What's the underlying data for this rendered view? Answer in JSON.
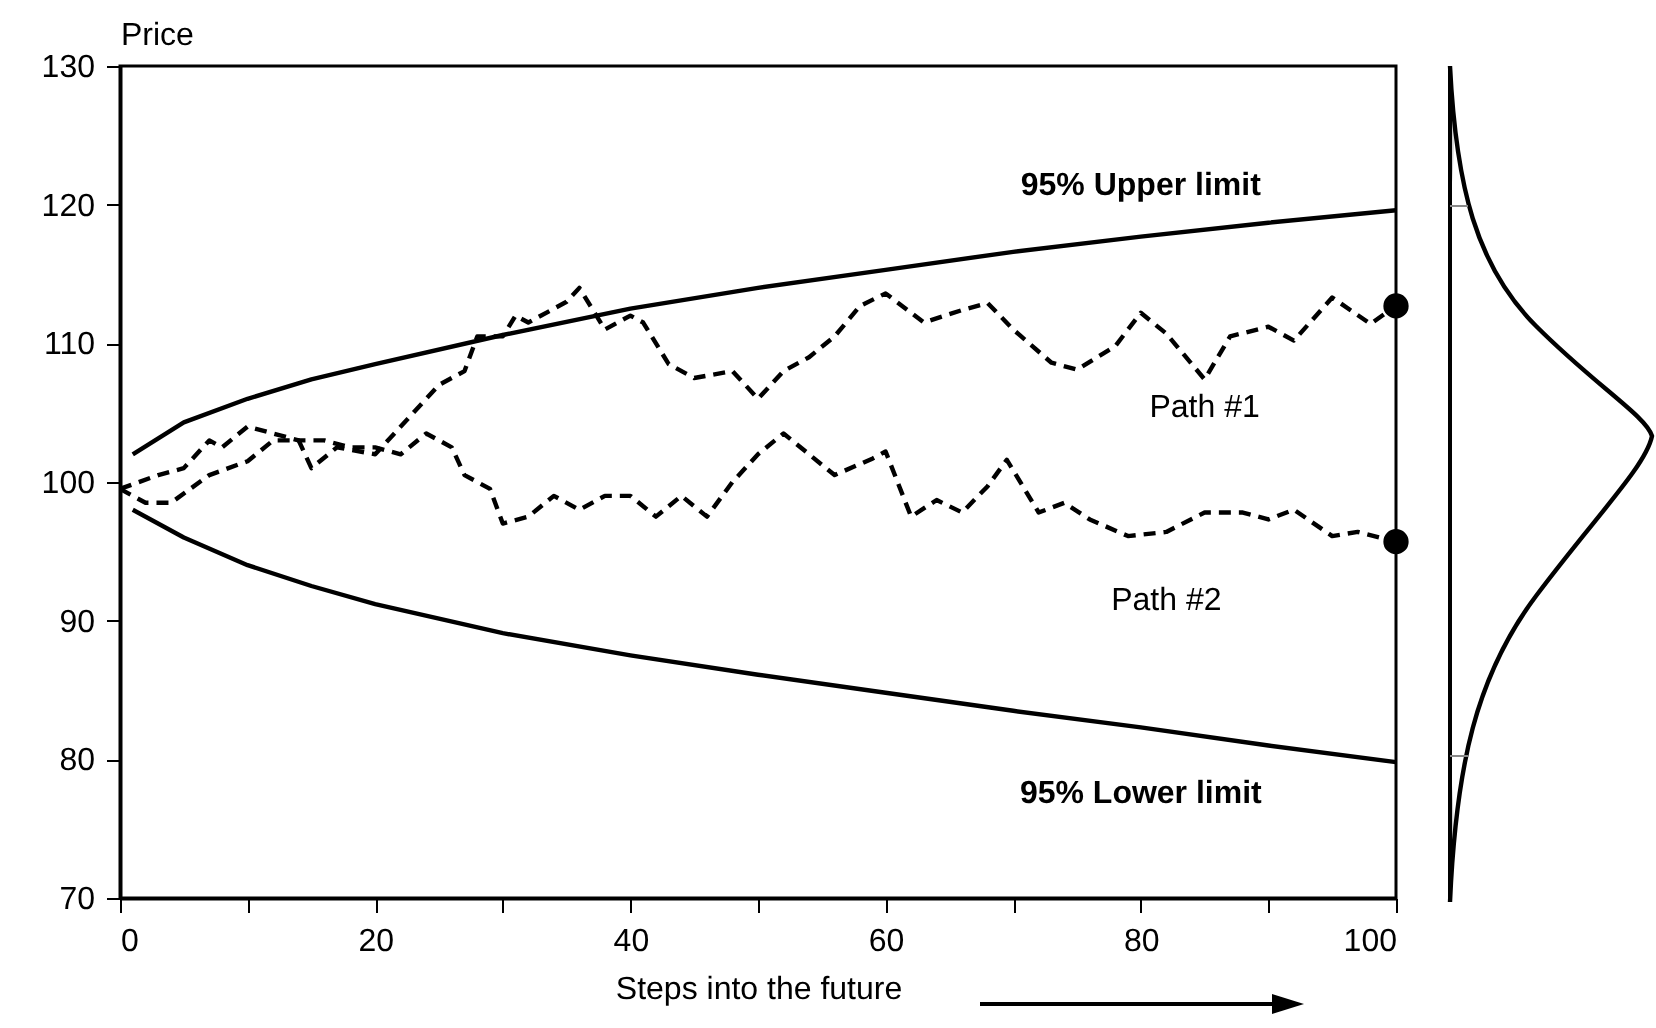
{
  "chart_data": {
    "type": "line",
    "xlabel": "Steps into the future",
    "ylabel": "Price",
    "xlim": [
      0,
      100
    ],
    "ylim": [
      70,
      130
    ],
    "xticks": [
      0,
      {
        "value": 10,
        "label": null
      },
      20,
      {
        "value": 30,
        "label": null
      },
      40,
      {
        "value": 50,
        "label": null
      },
      60,
      {
        "value": 70,
        "label": null
      },
      80,
      {
        "value": 90,
        "label": null
      },
      100
    ],
    "yticks": [
      70,
      80,
      90,
      100,
      110,
      120,
      130
    ],
    "grid": false,
    "series": [
      {
        "name": "95% Upper limit",
        "color": "#000000",
        "line_style": "solid",
        "x": [
          1,
          5,
          10,
          15,
          20,
          30,
          40,
          50,
          60,
          70,
          80,
          90,
          100
        ],
        "values": [
          102,
          104.3,
          106,
          107.4,
          108.5,
          110.6,
          112.5,
          114,
          115.3,
          116.6,
          117.7,
          118.7,
          119.6
        ]
      },
      {
        "name": "95% Lower limit",
        "color": "#000000",
        "line_style": "solid",
        "x": [
          1,
          5,
          10,
          15,
          20,
          30,
          40,
          50,
          60,
          70,
          80,
          90,
          100
        ],
        "values": [
          98,
          96,
          94,
          92.5,
          91.2,
          89.1,
          87.5,
          86.1,
          84.8,
          83.5,
          82.3,
          81,
          79.8
        ]
      },
      {
        "name": "Path #1",
        "color": "#000000",
        "line_style": "dashed",
        "x": [
          0,
          2,
          4,
          7,
          10,
          12,
          14,
          15,
          17,
          20,
          22,
          23,
          25,
          27,
          28,
          30,
          31,
          32,
          35,
          36,
          38,
          40,
          41,
          43,
          45,
          48,
          50,
          52,
          54,
          56,
          58,
          60,
          63,
          66,
          68,
          70,
          73,
          75,
          78,
          80,
          82,
          85,
          87,
          90,
          92,
          95,
          98,
          100
        ],
        "values": [
          99.5,
          98.5,
          98.5,
          100.5,
          101.5,
          103,
          103,
          101,
          102.5,
          102,
          104,
          105,
          107,
          108,
          110.5,
          110.5,
          112,
          111.5,
          113,
          114,
          111,
          112,
          111.5,
          108.5,
          107.5,
          108,
          106,
          108,
          109,
          110.5,
          112.7,
          113.6,
          111.5,
          112.4,
          112.9,
          111,
          108.6,
          108.1,
          109.8,
          112.2,
          110.7,
          107.4,
          110.5,
          111.2,
          110.2,
          113.3,
          111.4,
          112.7
        ]
      },
      {
        "name": "Path #2",
        "color": "#000000",
        "line_style": "dashed",
        "x": [
          0,
          3,
          5,
          7,
          8,
          10,
          12,
          14,
          16,
          18,
          20,
          22,
          24,
          26,
          27,
          29,
          30,
          32,
          34,
          36,
          38,
          40,
          42,
          44,
          46,
          48,
          50,
          52,
          54,
          56,
          59,
          60,
          62,
          64,
          66,
          68,
          69.5,
          72,
          74,
          76,
          79,
          82,
          85,
          88,
          90,
          92,
          95,
          97,
          100
        ],
        "values": [
          99.5,
          100.5,
          101,
          103,
          102.5,
          104,
          103.5,
          103,
          103,
          102.5,
          102.5,
          102,
          103.5,
          102.5,
          100.5,
          99.5,
          97,
          97.5,
          99,
          98,
          99,
          99,
          97.5,
          99,
          97.5,
          100,
          102,
          103.5,
          102,
          100.5,
          101.7,
          102.2,
          97.5,
          98.7,
          97.8,
          99.7,
          101.6,
          97.8,
          98.5,
          97.3,
          96.1,
          96.4,
          97.8,
          97.8,
          97.3,
          98,
          96.1,
          96.4,
          95.7
        ]
      },
      {
        "type": "scatter",
        "color": "#000000",
        "marker": "circle",
        "x": [
          100,
          100
        ],
        "values": [
          112.7,
          95.7
        ]
      }
    ]
  }
}
